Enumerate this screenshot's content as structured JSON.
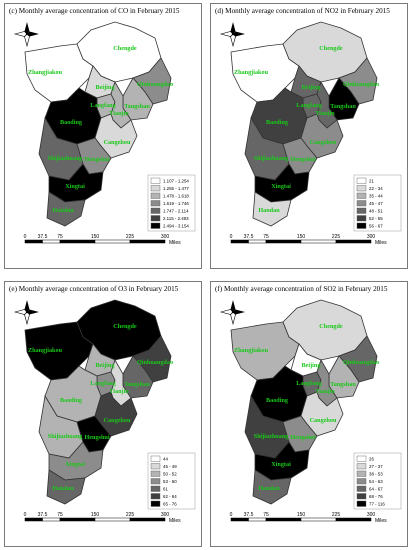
{
  "colors": {
    "scale": [
      "#ffffff",
      "#d9d9d9",
      "#b3b3b3",
      "#8c8c8c",
      "#666666",
      "#404040",
      "#000000"
    ],
    "label": "#19c819",
    "outline": "#333333"
  },
  "cities": [
    {
      "key": "zhangjiakou",
      "name": "Zhangjiakou"
    },
    {
      "key": "chengde",
      "name": "Chengde"
    },
    {
      "key": "beijing",
      "name": "Beijing"
    },
    {
      "key": "qinhuangdao",
      "name": "Qinhuangdao"
    },
    {
      "key": "langfang",
      "name": "Langfang"
    },
    {
      "key": "tangshan",
      "name": "Tangshan"
    },
    {
      "key": "tianjin",
      "name": "Tianjin"
    },
    {
      "key": "baoding",
      "name": "Baoding"
    },
    {
      "key": "cangzhou",
      "name": "Cangzhou"
    },
    {
      "key": "shijiazhuang",
      "name": "Shijiazhuang"
    },
    {
      "key": "hengshui",
      "name": "Hengshui"
    },
    {
      "key": "xingtai",
      "name": "Xingtai"
    },
    {
      "key": "handan",
      "name": "Handan"
    }
  ],
  "scalebar": {
    "ticks": [
      "0",
      "37.5",
      "75",
      "150",
      "225",
      "300"
    ],
    "unit": "Miles"
  },
  "panels": [
    {
      "id": "co",
      "title": "(c) Monthly average concentration of CO in February 2015",
      "legend": [
        "1.107 - 1.254",
        "1.255 - 1.477",
        "1.478 - 1.618",
        "1.619 - 1.746",
        "1.747 - 2.114",
        "2.115 - 2.493",
        "2.494 - 3.154"
      ],
      "classes": {
        "zhangjiakou": 0,
        "chengde": 0,
        "beijing": 1,
        "qinhuangdao": 3,
        "langfang": 2,
        "tangshan": 2,
        "tianjin": 2,
        "baoding": 6,
        "cangzhou": 1,
        "shijiazhuang": 4,
        "hengshui": 3,
        "xingtai": 6,
        "handan": 4
      }
    },
    {
      "id": "no2",
      "title": "(d) Monthly average concentration of NO2 in February 2015",
      "legend": [
        "21",
        "22 - 34",
        "35 - 44",
        "45 - 47",
        "48 - 51",
        "52 - 55",
        "56 - 67"
      ],
      "classes": {
        "zhangjiakou": 0,
        "chengde": 1,
        "beijing": 4,
        "qinhuangdao": 3,
        "langfang": 4,
        "tangshan": 6,
        "tianjin": 4,
        "baoding": 5,
        "cangzhou": 3,
        "shijiazhuang": 4,
        "hengshui": 3,
        "xingtai": 6,
        "handan": 1
      }
    },
    {
      "id": "o3",
      "title": "(e) Monthly average concentration of O3 in February 2015",
      "legend": [
        "44",
        "45 - 49",
        "50 - 52",
        "53 - 60",
        "61",
        "62 - 64",
        "65 - 76"
      ],
      "classes": {
        "zhangjiakou": 6,
        "chengde": 6,
        "beijing": 2,
        "qinhuangdao": 5,
        "langfang": 3,
        "tangshan": 4,
        "tianjin": 1,
        "baoding": 2,
        "cangzhou": 5,
        "shijiazhuang": 2,
        "hengshui": 6,
        "xingtai": 3,
        "handan": 4
      }
    },
    {
      "id": "so2",
      "title": "(f) Monthly average concentration of SO2 in February 2015",
      "legend": [
        "26",
        "27 - 37",
        "38 - 53",
        "54 - 63",
        "64 - 67",
        "68 - 76",
        "77 - 116"
      ],
      "classes": {
        "zhangjiakou": 2,
        "chengde": 1,
        "beijing": 0,
        "qinhuangdao": 4,
        "langfang": 4,
        "tangshan": 2,
        "tianjin": 3,
        "baoding": 6,
        "cangzhou": 1,
        "shijiazhuang": 5,
        "hengshui": 3,
        "xingtai": 6,
        "handan": 4
      }
    }
  ]
}
